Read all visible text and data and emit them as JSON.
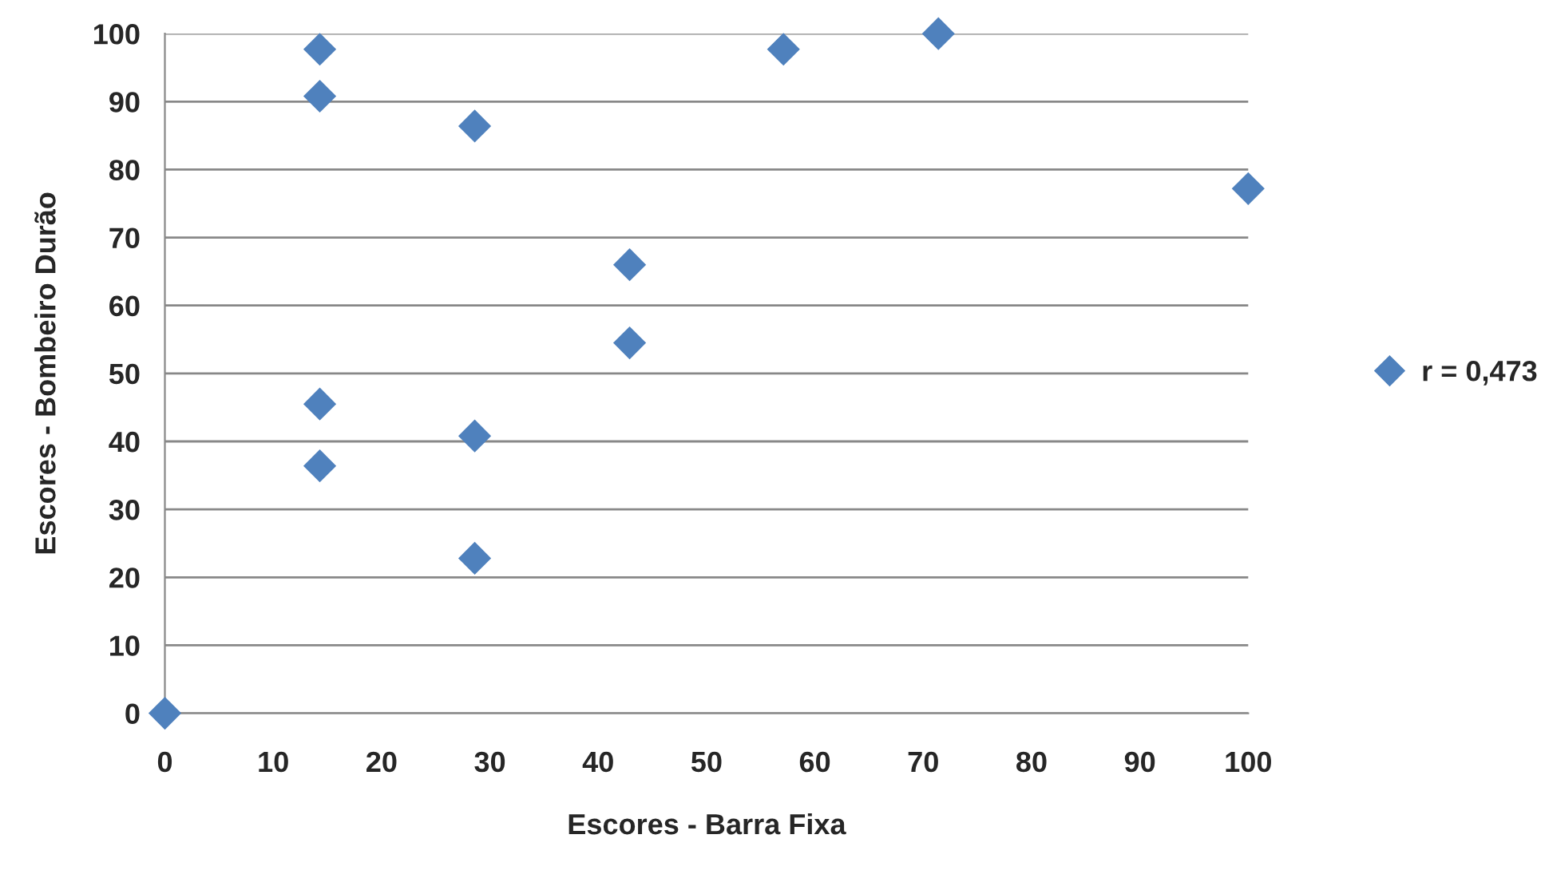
{
  "chart_data": {
    "type": "scatter",
    "xlabel": "Escores - Barra Fixa",
    "ylabel": "Escores - Bombeiro Durão",
    "x": [
      0,
      14.3,
      14.3,
      14.3,
      14.3,
      28.6,
      28.6,
      28.6,
      42.9,
      42.9,
      57.1,
      71.4,
      100
    ],
    "series": [
      {
        "name": "r = 0,473",
        "color": "#4f81bd",
        "values": [
          0,
          97.7,
          90.8,
          45.5,
          36.4,
          86.4,
          40.8,
          22.8,
          66.0,
          54.5,
          97.7,
          100,
          77.2
        ]
      }
    ],
    "xlim": [
      0,
      100
    ],
    "xticks": [
      0,
      10,
      20,
      30,
      40,
      50,
      60,
      70,
      80,
      90,
      100
    ],
    "ylim": [
      0,
      100
    ],
    "yticks": [
      0,
      10,
      20,
      30,
      40,
      50,
      60,
      70,
      80,
      90,
      100
    ],
    "grid": "y",
    "legend": "right",
    "marker": "diamond"
  }
}
